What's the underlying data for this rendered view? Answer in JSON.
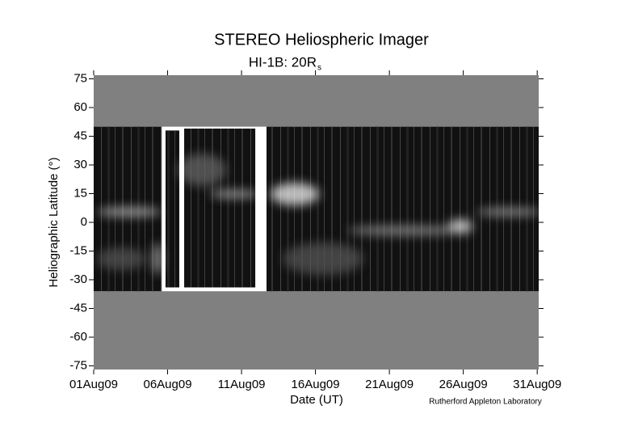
{
  "chart_data": {
    "type": "coverage",
    "title": "STEREO Heliospheric Imager",
    "subtitle": "HI-1B: 20R",
    "subtitle_subscript": "s",
    "xlabel": "Date (UT)",
    "ylabel": "Heliographic Latitude (°)",
    "credit": "Rutherford Appleton Laboratory",
    "xlim": [
      1,
      31.1
    ],
    "xticks": [
      {
        "value": 1,
        "label": "01Aug09"
      },
      {
        "value": 6,
        "label": "06Aug09"
      },
      {
        "value": 11,
        "label": "11Aug09"
      },
      {
        "value": 16,
        "label": "16Aug09"
      },
      {
        "value": 21,
        "label": "21Aug09"
      },
      {
        "value": 26,
        "label": "26Aug09"
      },
      {
        "value": 31,
        "label": "31Aug09"
      }
    ],
    "ylim": [
      -76.9,
      76.9
    ],
    "yticks": [
      -75,
      -60,
      -45,
      -30,
      -15,
      0,
      15,
      30,
      45,
      60,
      75
    ],
    "background_color": "#808080",
    "color": "#111111",
    "coverage": [
      {
        "start": 1,
        "end": 5.6,
        "lat_min": -36,
        "lat_max": 50
      },
      {
        "start": 5.86,
        "end": 6.79,
        "lat_min": -34,
        "lat_max": 48
      },
      {
        "start": 7.12,
        "end": 11.93,
        "lat_min": -34,
        "lat_max": 49
      },
      {
        "start": 12.69,
        "end": 31.1,
        "lat_min": -36,
        "lat_max": 50
      }
    ]
  }
}
